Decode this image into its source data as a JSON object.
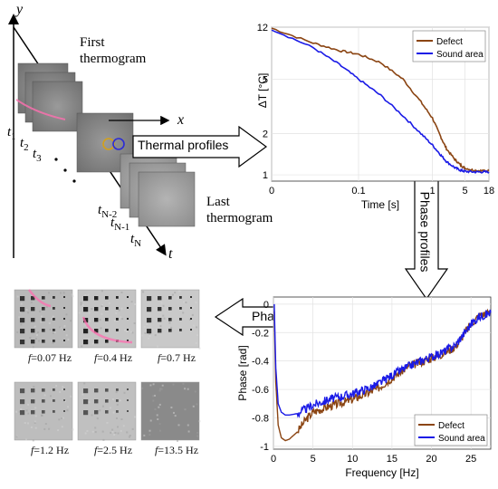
{
  "stack": {
    "y_axis": "y",
    "x_axis": "x",
    "t_axis": "t",
    "first_label_line1": "First",
    "first_label_line2": "thermogram",
    "last_label_line1": "Last",
    "last_label_line2": "thermogram",
    "t1": "t",
    "t1_sub": "1",
    "t2": "t",
    "t2_sub": "2",
    "t3": "t",
    "t3_sub": "3",
    "tn2": "t",
    "tn2_sub": "N-2",
    "tn1": "t",
    "tn1_sub": "N-1",
    "tn": "t",
    "tn_sub": "N"
  },
  "arrows": {
    "thermal_profiles": "Thermal profiles",
    "phase_profiles": "Phase profiles",
    "phasegrams": "Phasegrams"
  },
  "phasegrams": [
    {
      "f": "f",
      "label": "=0.07 Hz"
    },
    {
      "f": "f",
      "label": "=0.4 Hz"
    },
    {
      "f": "f",
      "label": "=0.7 Hz"
    },
    {
      "f": "f",
      "label": "=1.2 Hz"
    },
    {
      "f": "f",
      "label": "=2.5 Hz"
    },
    {
      "f": "f",
      "label": "=13.5 Hz"
    }
  ],
  "chart_data": [
    {
      "type": "line",
      "xlabel": "Time [s]",
      "ylabel": "ΔT [°C]",
      "x_scale": "log",
      "y_scale": "log",
      "xlim": [
        0,
        18
      ],
      "ylim": [
        0.9,
        12
      ],
      "x_ticks": [
        "0",
        "0.1",
        "1",
        "5",
        "18"
      ],
      "y_ticks": [
        "12",
        "5",
        "2",
        "1"
      ],
      "grid": true,
      "legend_position": "top-right",
      "series": [
        {
          "name": "Defect",
          "color": "#8B4513",
          "x": [
            0.01,
            0.03,
            0.06,
            0.1,
            0.2,
            0.4,
            0.7,
            1,
            1.5,
            2,
            3,
            4,
            5,
            8,
            12,
            18
          ],
          "y": [
            11.8,
            9.2,
            8.1,
            7.6,
            6.6,
            5.0,
            3.4,
            2.6,
            1.9,
            1.55,
            1.3,
            1.18,
            1.12,
            1.08,
            1.07,
            1.07
          ]
        },
        {
          "name": "Sound area",
          "color": "#1A1AE6",
          "x": [
            0.01,
            0.03,
            0.06,
            0.1,
            0.2,
            0.4,
            0.7,
            1,
            1.5,
            2,
            3,
            4,
            5,
            8,
            12,
            18
          ],
          "y": [
            11.6,
            8.5,
            6.4,
            5.0,
            3.8,
            2.7,
            2.0,
            1.65,
            1.4,
            1.25,
            1.13,
            1.08,
            1.06,
            1.05,
            1.05,
            1.05
          ]
        }
      ]
    },
    {
      "type": "line",
      "xlabel": "Frequency [Hz]",
      "ylabel": "Phase [rad]",
      "xlim": [
        0,
        27.5
      ],
      "ylim": [
        -1.02,
        0.05
      ],
      "x_ticks": [
        0,
        5,
        10,
        15,
        20,
        25
      ],
      "y_ticks": [
        0,
        -0.2,
        -0.4,
        -0.6,
        -0.8,
        -1
      ],
      "grid": true,
      "legend_position": "bottom-right",
      "series": [
        {
          "name": "Defect",
          "color": "#8B4513",
          "x": [
            0.1,
            0.3,
            0.6,
            1,
            1.5,
            2,
            3,
            4,
            5,
            7,
            10,
            13,
            15,
            17,
            19,
            21,
            23,
            25,
            26,
            27.5
          ],
          "y": [
            -0.05,
            -0.55,
            -0.85,
            -0.94,
            -0.96,
            -0.95,
            -0.9,
            -0.82,
            -0.76,
            -0.72,
            -0.67,
            -0.6,
            -0.52,
            -0.44,
            -0.4,
            -0.36,
            -0.3,
            -0.14,
            -0.08,
            -0.06
          ]
        },
        {
          "name": "Sound area",
          "color": "#1A1AE6",
          "x": [
            0.1,
            0.3,
            0.6,
            1,
            1.5,
            2,
            3,
            4,
            5,
            7,
            10,
            13,
            15,
            17,
            19,
            21,
            23,
            25,
            26,
            27.5
          ],
          "y": [
            0.0,
            -0.45,
            -0.7,
            -0.76,
            -0.78,
            -0.78,
            -0.77,
            -0.74,
            -0.71,
            -0.67,
            -0.63,
            -0.57,
            -0.5,
            -0.44,
            -0.39,
            -0.35,
            -0.29,
            -0.14,
            -0.09,
            -0.06
          ]
        }
      ]
    }
  ]
}
